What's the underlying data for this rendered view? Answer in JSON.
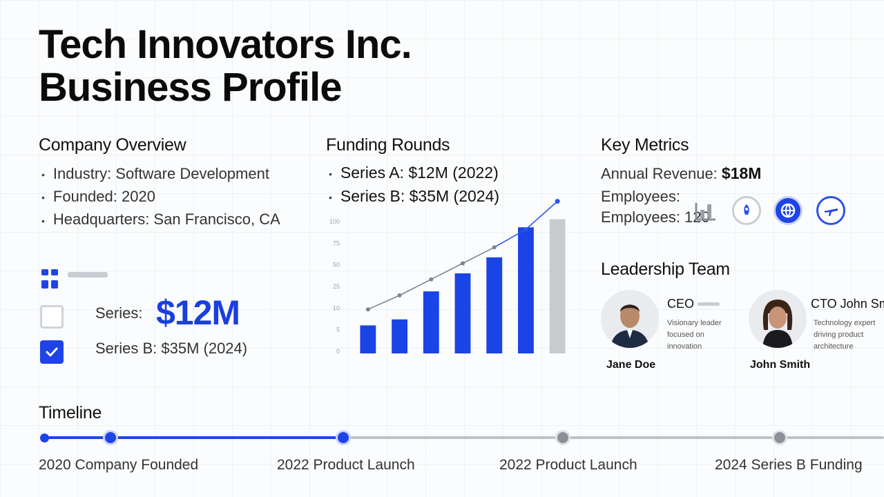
{
  "title": {
    "line1": "Tech Innovators Inc.",
    "line2": "Business Profile"
  },
  "overview": {
    "heading": "Company Overview",
    "items": [
      "Industry: Software Development",
      "Founded: 2020",
      "Headquarters: San Francisco, CA"
    ]
  },
  "funding_widget": {
    "tag": "",
    "row1_label": "Series:",
    "row1_value": "$12M",
    "row2_label": "Series B: $35M (2024)",
    "checked": [
      false,
      true
    ]
  },
  "funding": {
    "heading": "Funding Rounds",
    "items": [
      "Series A: $12M (2022)",
      "Series B: $35M (2024)"
    ]
  },
  "chart_data": {
    "type": "bar",
    "y_ticks": [
      "100",
      "75",
      "50",
      "25",
      "10",
      "5",
      "0"
    ],
    "categories": [
      "",
      "",
      "",
      "",
      "",
      "",
      ""
    ],
    "values": [
      14,
      17,
      31,
      40,
      48,
      63,
      67
    ],
    "line_values": [
      22,
      29,
      37,
      45,
      53,
      62,
      76
    ],
    "ylim": [
      0,
      80
    ],
    "colors": [
      "#1a44e6",
      "#1a44e6",
      "#1a44e6",
      "#1a44e6",
      "#1a44e6",
      "#1a44e6",
      "#c8cacd"
    ],
    "line_color": "#7a8594",
    "line_color_end": "#2f55e8"
  },
  "metrics": {
    "heading": "Key Metrics",
    "revenue_label": "Annual Revenue:",
    "revenue_value": "$18M",
    "employees_label1": "Employees:",
    "employees_label2": "Employees: 120",
    "icons": [
      "chart-icon",
      "rocket-icon",
      "globe-icon",
      "plane-icon"
    ]
  },
  "leadership": {
    "heading": "Leadership Team",
    "members": [
      {
        "role": "CEO",
        "name": "Jane Doe",
        "desc": [
          "Visionary leader",
          "focused on",
          "innovation"
        ]
      },
      {
        "role": "CTO John Smith",
        "name": "John Smith",
        "desc": [
          "Technology expert",
          "driving product",
          "architecture"
        ]
      }
    ]
  },
  "timeline": {
    "heading": "Timeline",
    "events": [
      "2020 Company Founded",
      "2022 Product Launch",
      "2022 Product Launch",
      "2024 Series B Funding"
    ],
    "active_color": "#1f44e6",
    "inactive_color": "#bdc2c8"
  }
}
